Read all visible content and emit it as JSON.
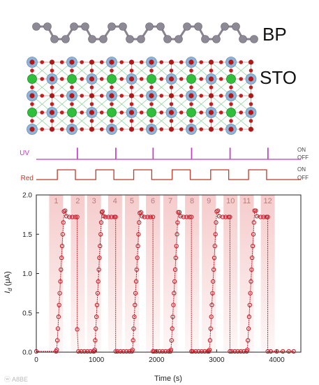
{
  "structure": {
    "bp_label": "BP",
    "sto_label": "STO"
  },
  "signals": {
    "uv": {
      "name": "UV",
      "on": "ON",
      "off": "OFF",
      "color": "#c03cc0"
    },
    "red": {
      "name": "Red",
      "on": "ON",
      "off": "OFF",
      "color": "#c0392b"
    }
  },
  "watermark": "ⓦ A8BE",
  "colors": {
    "data": "#c0202a",
    "shade": "#f5c9c9",
    "shade_number": "#b77c7c"
  },
  "chart_data": {
    "type": "line",
    "xlabel": "Time (s)",
    "ylabel": "I_d (μA)",
    "xlim": [
      0,
      4400
    ],
    "ylim": [
      0,
      2.0
    ],
    "xticks": [
      0,
      1000,
      2000,
      3000,
      4000
    ],
    "xtick_labels": [
      "0",
      "1000",
      "2000",
      "3000",
      "4000"
    ],
    "yticks": [
      0.0,
      0.5,
      1.0,
      1.5,
      2.0
    ],
    "ytick_labels": [
      "0.0",
      "0.5",
      "1.0",
      "1.5",
      "2.0"
    ],
    "grid": false,
    "period_labels": [
      "1",
      "2",
      "3",
      "4",
      "5",
      "6",
      "7",
      "8",
      "9",
      "10",
      "11",
      "12"
    ],
    "red_on_intervals": [
      [
        350,
        650
      ],
      [
        990,
        1290
      ],
      [
        1620,
        1920
      ],
      [
        2260,
        2560
      ],
      [
        2900,
        3200
      ],
      [
        3530,
        3830
      ]
    ],
    "uv_pulse_times": [
      680,
      1320,
      1940,
      2580,
      3220,
      3850
    ],
    "period_centers": [
      330,
      690,
      960,
      1310,
      1590,
      1940,
      2230,
      2590,
      2870,
      3230,
      3500,
      3850
    ],
    "series": [
      {
        "x": [
          0,
          330,
          340,
          350,
          360,
          370,
          380,
          390,
          400,
          410,
          420,
          430,
          440,
          450,
          460,
          480,
          500,
          550,
          600,
          650,
          680,
          680,
          700,
          750,
          800,
          850,
          900,
          950,
          960,
          970,
          980,
          990,
          1000,
          1010,
          1020,
          1030,
          1040,
          1050,
          1060,
          1070,
          1080,
          1090,
          1100,
          1120,
          1150,
          1200,
          1250,
          1300,
          1320,
          1320,
          1350,
          1400,
          1450,
          1500,
          1550,
          1590,
          1600,
          1610,
          1620,
          1630,
          1640,
          1650,
          1660,
          1670,
          1680,
          1690,
          1700,
          1710,
          1720,
          1740,
          1760,
          1800,
          1850,
          1900,
          1940,
          1940,
          1960,
          2000,
          2050,
          2100,
          2150,
          2200,
          2230,
          2240,
          2250,
          2260,
          2270,
          2280,
          2290,
          2300,
          2310,
          2320,
          2330,
          2340,
          2350,
          2360,
          2380,
          2400,
          2450,
          2500,
          2550,
          2580,
          2580,
          2600,
          2650,
          2700,
          2750,
          2800,
          2850,
          2870,
          2880,
          2890,
          2900,
          2910,
          2920,
          2930,
          2940,
          2950,
          2960,
          2970,
          2980,
          2990,
          3000,
          3020,
          3040,
          3100,
          3150,
          3200,
          3220,
          3220,
          3250,
          3300,
          3350,
          3400,
          3450,
          3500,
          3510,
          3520,
          3530,
          3540,
          3550,
          3560,
          3570,
          3580,
          3590,
          3600,
          3610,
          3620,
          3630,
          3650,
          3670,
          3730,
          3780,
          3830,
          3850,
          3850,
          3900,
          4000,
          4100,
          4200,
          4280
        ],
        "y": [
          0.01,
          0.01,
          0.03,
          0.15,
          0.3,
          0.45,
          0.6,
          0.75,
          0.9,
          1.05,
          1.2,
          1.35,
          1.5,
          1.65,
          1.79,
          1.8,
          1.73,
          1.72,
          1.72,
          1.72,
          1.72,
          0.29,
          0.01,
          0.01,
          0.01,
          0.01,
          0.01,
          0.01,
          0.01,
          0.03,
          0.15,
          0.3,
          0.45,
          0.6,
          0.75,
          0.9,
          1.05,
          1.2,
          1.35,
          1.5,
          1.65,
          1.78,
          1.79,
          1.73,
          1.72,
          1.72,
          1.72,
          1.72,
          1.72,
          0.01,
          0.01,
          0.01,
          0.01,
          0.01,
          0.01,
          0.01,
          0.03,
          0.15,
          0.3,
          0.45,
          0.6,
          0.75,
          0.9,
          1.05,
          1.2,
          1.35,
          1.5,
          1.65,
          1.77,
          1.78,
          1.73,
          1.72,
          1.72,
          1.72,
          1.72,
          0.01,
          0.01,
          0.01,
          0.01,
          0.01,
          0.01,
          0.01,
          0.01,
          0.03,
          0.15,
          0.3,
          0.45,
          0.6,
          0.75,
          0.9,
          1.05,
          1.2,
          1.35,
          1.5,
          1.65,
          1.78,
          1.78,
          1.73,
          1.72,
          1.72,
          1.72,
          1.72,
          0.01,
          0.01,
          0.01,
          0.01,
          0.01,
          0.01,
          0.01,
          0.01,
          0.03,
          0.15,
          0.3,
          0.45,
          0.6,
          0.75,
          0.9,
          1.05,
          1.2,
          1.35,
          1.5,
          1.65,
          1.79,
          1.8,
          1.73,
          1.72,
          1.72,
          1.72,
          1.72,
          0.01,
          0.01,
          0.01,
          0.01,
          0.01,
          0.01,
          0.01,
          0.03,
          0.15,
          0.3,
          0.45,
          0.6,
          0.75,
          0.9,
          1.05,
          1.2,
          1.35,
          1.5,
          1.65,
          1.8,
          1.8,
          1.73,
          1.72,
          1.72,
          1.72,
          1.72,
          0.01,
          0.01,
          0.01,
          0.01,
          0.01,
          0.01
        ]
      }
    ]
  }
}
